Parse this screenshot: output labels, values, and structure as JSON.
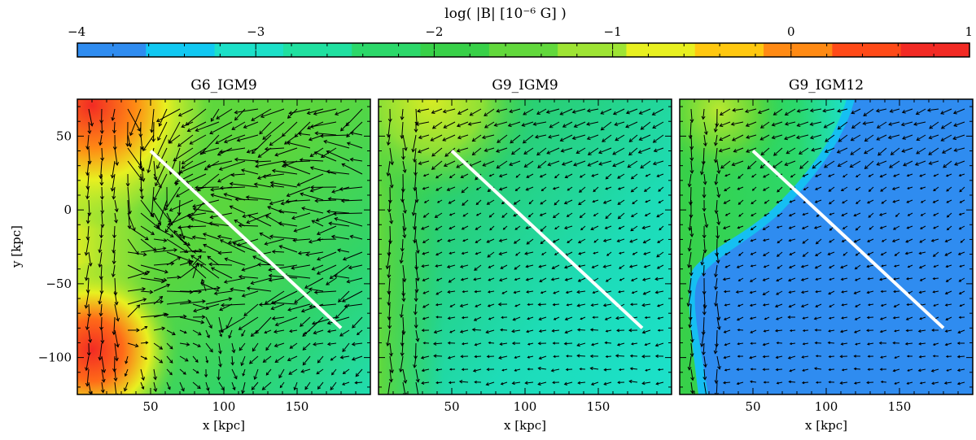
{
  "colorbar": {
    "label": "log( |B| [10⁻⁶ G] )",
    "ticks": [
      "−4",
      "−3",
      "−2",
      "−1",
      "0",
      "1"
    ],
    "range": [
      -4,
      1
    ],
    "colors": [
      "#2f8cf0",
      "#11c8f2",
      "#1ce0c8",
      "#20e0a0",
      "#2cd86a",
      "#38d048",
      "#62d83c",
      "#9ee434",
      "#e8f020",
      "#ffc810",
      "#ff8a14",
      "#ff4a18",
      "#f22a24"
    ]
  },
  "axes": {
    "xlabel": "x [kpc]",
    "ylabel": "y [kpc]",
    "x_ticks": [
      "50",
      "100",
      "150"
    ],
    "y_ticks": [
      "50",
      "0",
      "−50",
      "−100"
    ],
    "xlim": [
      0,
      200
    ],
    "ylim": [
      -125,
      75
    ]
  },
  "chart_data": [
    {
      "type": "heatmap",
      "title": "G6_IGM9",
      "background_level_log": -2.2,
      "xlim": [
        0,
        200
      ],
      "ylim": [
        -125,
        75
      ],
      "line_of_sight": {
        "x": [
          50,
          180
        ],
        "y": [
          40,
          -80
        ],
        "color": "#ffffff"
      },
      "field_vectors": "black arrows, turbulent with long vectors"
    },
    {
      "type": "heatmap",
      "title": "G9_IGM9",
      "background_level_log": -2.6,
      "xlim": [
        0,
        200
      ],
      "ylim": [
        -125,
        75
      ],
      "line_of_sight": {
        "x": [
          50,
          180
        ],
        "y": [
          40,
          -80
        ],
        "color": "#ffffff"
      },
      "field_vectors": "black arrows, mostly short and ordered"
    },
    {
      "type": "heatmap",
      "title": "G9_IGM12",
      "background_level_log": -3.9,
      "xlim": [
        0,
        200
      ],
      "ylim": [
        -125,
        75
      ],
      "line_of_sight": {
        "x": [
          50,
          180
        ],
        "y": [
          40,
          -80
        ],
        "color": "#ffffff"
      },
      "field_vectors": "black arrows, short, nearly uniform"
    }
  ]
}
